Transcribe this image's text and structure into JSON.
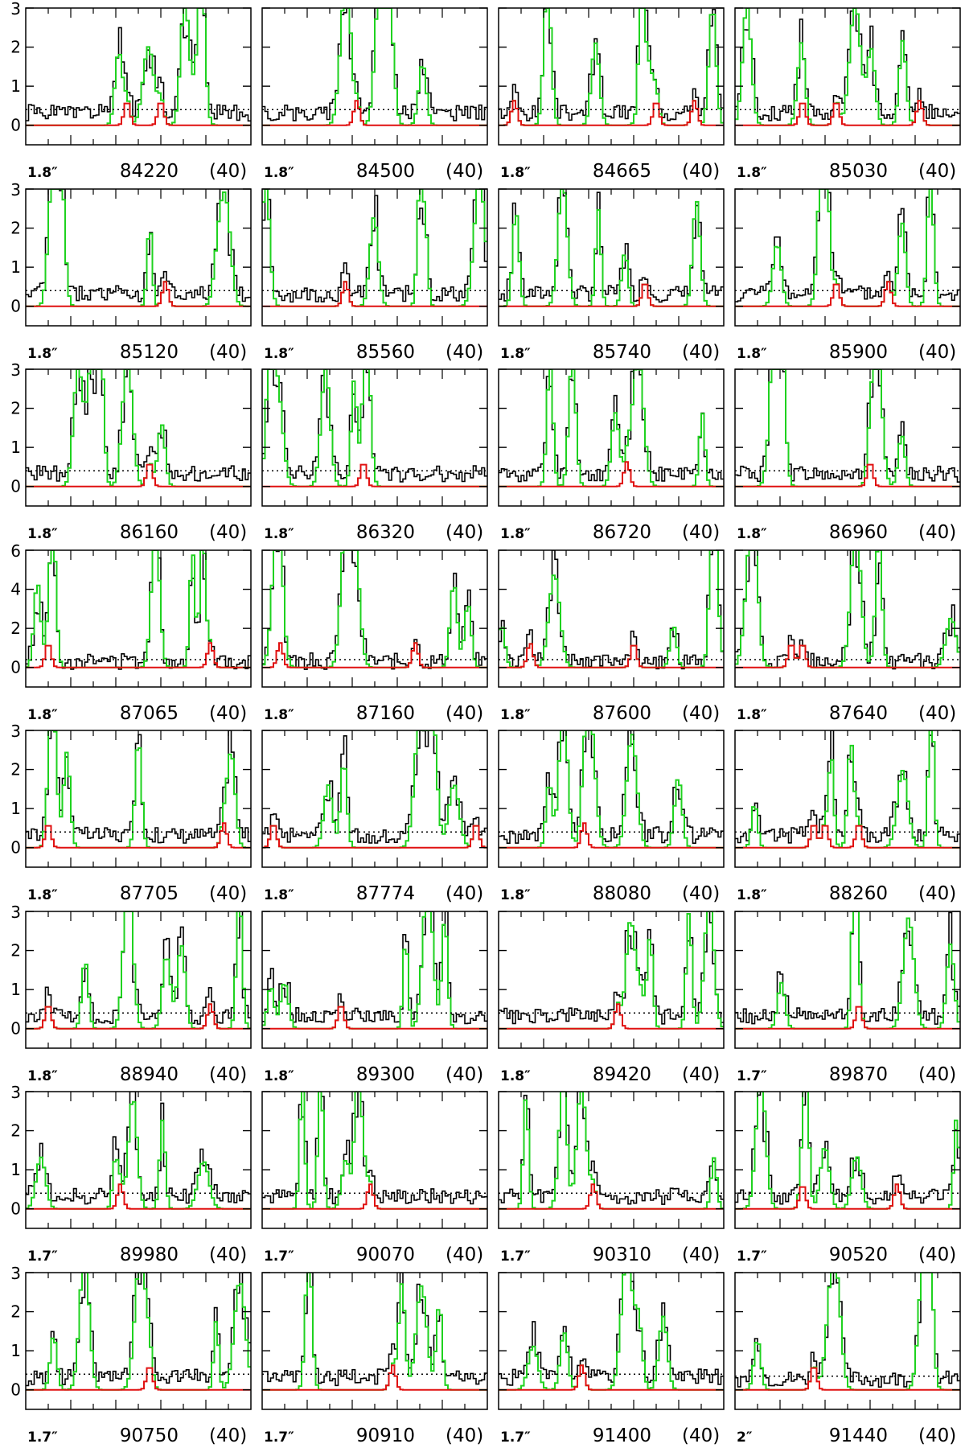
{
  "figure": {
    "description_free": true,
    "colors": {
      "observed": "#000000",
      "lte_model_total": "#1fd21f",
      "lte_model_species": "#e01010",
      "noise_level": "#000000",
      "axes": "#000000"
    },
    "rows": 8,
    "cols": 4
  },
  "chart_data": [
    {
      "type": "line",
      "beam": "1.8″",
      "freq": "84220",
      "channels": "(40)",
      "yticks": [
        "0",
        "1",
        "2",
        "3"
      ],
      "ylim": [
        -0.5,
        3
      ],
      "rms": 0.4,
      "seed": 1,
      "lines": [
        0.45,
        0.6
      ]
    },
    {
      "type": "line",
      "beam": "1.8″",
      "freq": "84500",
      "channels": "(40)",
      "yticks": [
        "0",
        "1",
        "2",
        "3"
      ],
      "ylim": [
        -0.5,
        3
      ],
      "rms": 0.4,
      "seed": 2,
      "lines": [
        0.42
      ]
    },
    {
      "type": "line",
      "beam": "1.8″",
      "freq": "84665",
      "channels": "(40)",
      "yticks": [
        "0",
        "1",
        "2",
        "3"
      ],
      "ylim": [
        -0.5,
        3
      ],
      "rms": 0.4,
      "seed": 3,
      "lines": [
        0.07,
        0.7,
        0.87
      ]
    },
    {
      "type": "line",
      "beam": "1.8″",
      "freq": "85030",
      "channels": "(40)",
      "yticks": [
        "0",
        "1",
        "2",
        "3"
      ],
      "ylim": [
        -0.5,
        3
      ],
      "rms": 0.4,
      "seed": 4,
      "lines": [
        0.3,
        0.45,
        0.82
      ]
    },
    {
      "type": "line",
      "beam": "1.8″",
      "freq": "85120",
      "channels": "(40)",
      "yticks": [
        "0",
        "1",
        "2",
        "3"
      ],
      "ylim": [
        -0.5,
        3
      ],
      "rms": 0.4,
      "seed": 5,
      "lines": [
        0.62
      ]
    },
    {
      "type": "line",
      "beam": "1.8″",
      "freq": "85560",
      "channels": "(40)",
      "yticks": [
        "0",
        "1",
        "2",
        "3"
      ],
      "ylim": [
        -0.5,
        3
      ],
      "rms": 0.4,
      "seed": 6,
      "lines": [
        0.37
      ]
    },
    {
      "type": "line",
      "beam": "1.8″",
      "freq": "85740",
      "channels": "(40)",
      "yticks": [
        "0",
        "1",
        "2",
        "3"
      ],
      "ylim": [
        -0.5,
        3
      ],
      "rms": 0.4,
      "seed": 7,
      "lines": [
        0.65
      ]
    },
    {
      "type": "line",
      "beam": "1.8″",
      "freq": "85900",
      "channels": "(40)",
      "yticks": [
        "0",
        "1",
        "2",
        "3"
      ],
      "ylim": [
        -0.5,
        3
      ],
      "rms": 0.4,
      "seed": 8,
      "lines": [
        0.45,
        0.68
      ]
    },
    {
      "type": "line",
      "beam": "1.8″",
      "freq": "86160",
      "channels": "(40)",
      "yticks": [
        "0",
        "1",
        "2",
        "3"
      ],
      "ylim": [
        -0.5,
        3
      ],
      "rms": 0.4,
      "seed": 9,
      "lines": [
        0.55
      ]
    },
    {
      "type": "line",
      "beam": "1.8″",
      "freq": "86320",
      "channels": "(40)",
      "yticks": [
        "0",
        "1",
        "2",
        "3"
      ],
      "ylim": [
        -0.5,
        3
      ],
      "rms": 0.4,
      "seed": 10,
      "lines": [
        0.45
      ]
    },
    {
      "type": "line",
      "beam": "1.8″",
      "freq": "86720",
      "channels": "(40)",
      "yticks": [
        "0",
        "1",
        "2",
        "3"
      ],
      "ylim": [
        -0.5,
        3
      ],
      "rms": 0.4,
      "seed": 11,
      "lines": [
        0.57
      ]
    },
    {
      "type": "line",
      "beam": "1.8″",
      "freq": "86960",
      "channels": "(40)",
      "yticks": [
        "0",
        "1",
        "2",
        "3"
      ],
      "ylim": [
        -0.5,
        3
      ],
      "rms": 0.4,
      "seed": 12,
      "lines": [
        0.6
      ]
    },
    {
      "type": "line",
      "beam": "1.8″",
      "freq": "87065",
      "channels": "(40)",
      "yticks": [
        "0",
        "2",
        "4",
        "6"
      ],
      "ylim": [
        -1,
        6
      ],
      "rms": 0.4,
      "seed": 13,
      "lines": [
        0.1,
        0.82
      ]
    },
    {
      "type": "line",
      "beam": "1.8″",
      "freq": "87160",
      "channels": "(40)",
      "yticks": [
        "0",
        "2",
        "4",
        "6"
      ],
      "ylim": [
        -1,
        6
      ],
      "rms": 0.4,
      "seed": 14,
      "lines": [
        0.08,
        0.68
      ]
    },
    {
      "type": "line",
      "beam": "1.8″",
      "freq": "87600",
      "channels": "(40)",
      "yticks": [
        "0",
        "2",
        "4",
        "6"
      ],
      "ylim": [
        -1,
        6
      ],
      "rms": 0.4,
      "seed": 15,
      "lines": [
        0.14,
        0.6
      ]
    },
    {
      "type": "line",
      "beam": "1.8″",
      "freq": "87640",
      "channels": "(40)",
      "yticks": [
        "0",
        "2",
        "4",
        "6"
      ],
      "ylim": [
        -1,
        6
      ],
      "rms": 0.4,
      "seed": 16,
      "lines": [
        0.25,
        0.3
      ]
    },
    {
      "type": "line",
      "beam": "1.8″",
      "freq": "87705",
      "channels": "(40)",
      "yticks": [
        "0",
        "1",
        "2",
        "3"
      ],
      "ylim": [
        -0.5,
        3
      ],
      "rms": 0.4,
      "seed": 17,
      "lines": [
        0.1,
        0.88
      ]
    },
    {
      "type": "line",
      "beam": "1.8″",
      "freq": "87774",
      "channels": "(40)",
      "yticks": [
        "0",
        "1",
        "2",
        "3"
      ],
      "ylim": [
        -0.5,
        3
      ],
      "rms": 0.4,
      "seed": 18,
      "lines": [
        0.05,
        0.95
      ]
    },
    {
      "type": "line",
      "beam": "1.8″",
      "freq": "88080",
      "channels": "(40)",
      "yticks": [
        "0",
        "1",
        "2",
        "3"
      ],
      "ylim": [
        -0.5,
        3
      ],
      "rms": 0.4,
      "seed": 19,
      "lines": [
        0.38
      ]
    },
    {
      "type": "line",
      "beam": "1.8″",
      "freq": "88260",
      "channels": "(40)",
      "yticks": [
        "0",
        "1",
        "2",
        "3"
      ],
      "ylim": [
        -0.5,
        3
      ],
      "rms": 0.4,
      "seed": 20,
      "lines": [
        0.35,
        0.4,
        0.55
      ]
    },
    {
      "type": "line",
      "beam": "1.8″",
      "freq": "88940",
      "channels": "(40)",
      "yticks": [
        "0",
        "1",
        "2",
        "3"
      ],
      "ylim": [
        -0.5,
        3
      ],
      "rms": 0.4,
      "seed": 21,
      "lines": [
        0.1,
        0.82
      ]
    },
    {
      "type": "line",
      "beam": "1.8″",
      "freq": "89300",
      "channels": "(40)",
      "yticks": [
        "0",
        "1",
        "2",
        "3"
      ],
      "ylim": [
        -0.5,
        3
      ],
      "rms": 0.4,
      "seed": 22,
      "lines": [
        0.35
      ]
    },
    {
      "type": "line",
      "beam": "1.8″",
      "freq": "89420",
      "channels": "(40)",
      "yticks": [
        "0",
        "1",
        "2",
        "3"
      ],
      "ylim": [
        -0.5,
        3
      ],
      "rms": 0.4,
      "seed": 23,
      "lines": [
        0.53
      ]
    },
    {
      "type": "line",
      "beam": "1.7″",
      "freq": "89870",
      "channels": "(40)",
      "yticks": [
        "0",
        "1",
        "2",
        "3"
      ],
      "ylim": [
        -0.5,
        3
      ],
      "rms": 0.4,
      "seed": 24,
      "lines": [
        0.55
      ]
    },
    {
      "type": "line",
      "beam": "1.7″",
      "freq": "89980",
      "channels": "(40)",
      "yticks": [
        "0",
        "1",
        "2",
        "3"
      ],
      "ylim": [
        -0.5,
        3
      ],
      "rms": 0.4,
      "seed": 25,
      "lines": [
        0.42
      ]
    },
    {
      "type": "line",
      "beam": "1.7″",
      "freq": "90070",
      "channels": "(40)",
      "yticks": [
        "0",
        "1",
        "2",
        "3"
      ],
      "ylim": [
        -0.5,
        3
      ],
      "rms": 0.4,
      "seed": 26,
      "lines": [
        0.48
      ]
    },
    {
      "type": "line",
      "beam": "1.7″",
      "freq": "90310",
      "channels": "(40)",
      "yticks": [
        "0",
        "1",
        "2",
        "3"
      ],
      "ylim": [
        -0.5,
        3
      ],
      "rms": 0.4,
      "seed": 27,
      "lines": [
        0.42
      ]
    },
    {
      "type": "line",
      "beam": "1.7″",
      "freq": "90520",
      "channels": "(40)",
      "yticks": [
        "0",
        "1",
        "2",
        "3"
      ],
      "ylim": [
        -0.5,
        3
      ],
      "rms": 0.4,
      "seed": 28,
      "lines": [
        0.3,
        0.72
      ]
    },
    {
      "type": "line",
      "beam": "1.7″",
      "freq": "90750",
      "channels": "(40)",
      "yticks": [
        "0",
        "1",
        "2",
        "3"
      ],
      "ylim": [
        -0.5,
        3
      ],
      "rms": 0.4,
      "seed": 29,
      "lines": [
        0.55
      ]
    },
    {
      "type": "line",
      "beam": "1.7″",
      "freq": "90910",
      "channels": "(40)",
      "yticks": [
        "0",
        "1",
        "2",
        "3"
      ],
      "ylim": [
        -0.5,
        3
      ],
      "rms": 0.4,
      "seed": 30,
      "lines": [
        0.58
      ]
    },
    {
      "type": "line",
      "beam": "1.7″",
      "freq": "91400",
      "channels": "(40)",
      "yticks": [
        "0",
        "1",
        "2",
        "3"
      ],
      "ylim": [
        -0.5,
        3
      ],
      "rms": 0.4,
      "seed": 31,
      "lines": [
        0.37
      ]
    },
    {
      "type": "line",
      "beam": "2″",
      "freq": "91440",
      "channels": "(40)",
      "yticks": [
        "0",
        "1",
        "2",
        "3"
      ],
      "ylim": [
        -0.5,
        3
      ],
      "rms": 0.35,
      "seed": 32,
      "lines": [
        0.35
      ]
    }
  ]
}
